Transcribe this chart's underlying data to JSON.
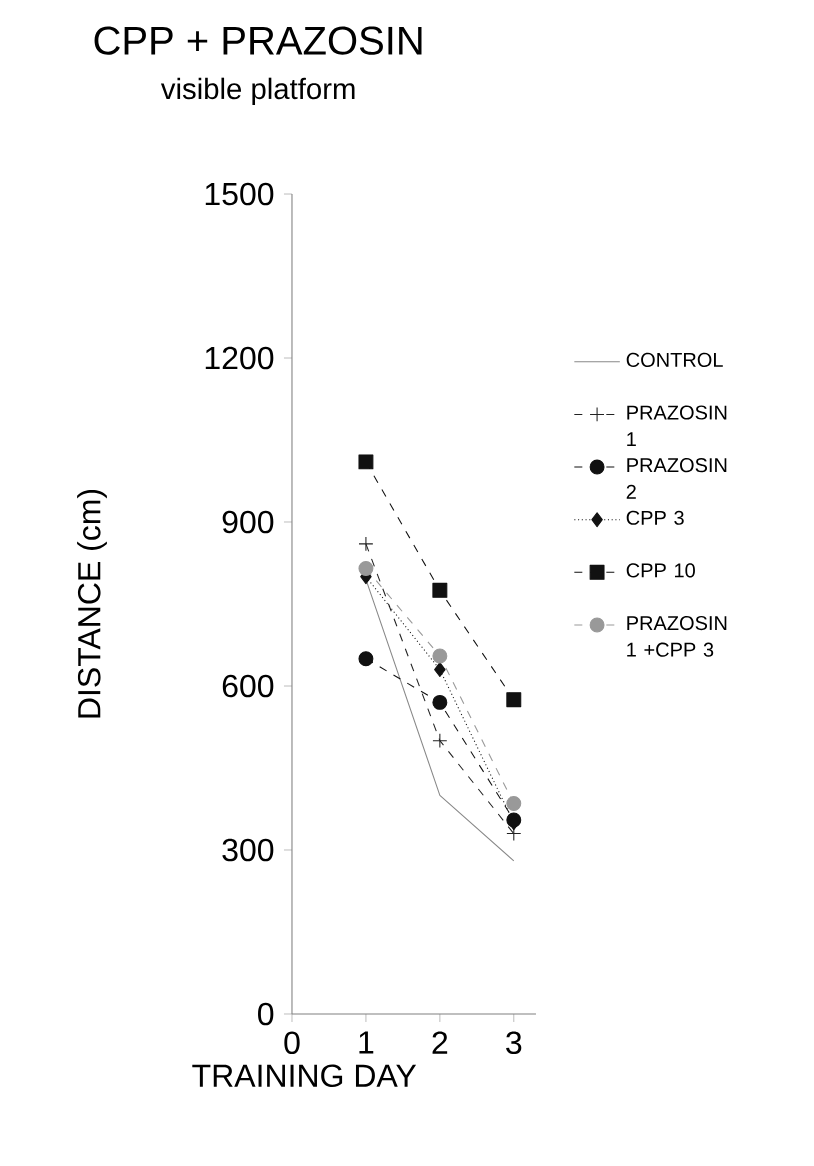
{
  "chart_data": {
    "type": "line",
    "title": "CPP + PRAZOSIN",
    "subtitle": "visible platform",
    "xlabel": "TRAINING DAY",
    "ylabel": "DISTANCE (cm)",
    "x": [
      1,
      2,
      3
    ],
    "xlim": [
      0,
      3.3
    ],
    "xticks": [
      0,
      1,
      2,
      3
    ],
    "ylim": [
      0,
      1500
    ],
    "yticks": [
      0,
      300,
      600,
      900,
      1200,
      1500
    ],
    "legend": "right",
    "grid": false,
    "series": [
      {
        "name": "CONTROL",
        "color": "#888888",
        "marker": "none",
        "line_style": "solid",
        "values": [
          795,
          400,
          280
        ]
      },
      {
        "name": "PRAZOSIN 1",
        "color": "#222222",
        "marker": "cross",
        "line_style": "dashed",
        "values": [
          860,
          500,
          330
        ]
      },
      {
        "name": "PRAZOSIN 2",
        "color": "#111111",
        "marker": "circle",
        "line_style": "dashed",
        "values": [
          650,
          570,
          355
        ]
      },
      {
        "name": "CPP 3",
        "color": "#111111",
        "marker": "diamond",
        "line_style": "dotted",
        "values": [
          800,
          630,
          350
        ]
      },
      {
        "name": "CPP 10",
        "color": "#111111",
        "marker": "square",
        "line_style": "dashed",
        "values": [
          1010,
          775,
          575
        ]
      },
      {
        "name": "PRAZOSIN 1 +CPP 3",
        "color": "#999999",
        "marker": "circle",
        "line_style": "dashed",
        "values": [
          815,
          655,
          385
        ]
      }
    ]
  }
}
